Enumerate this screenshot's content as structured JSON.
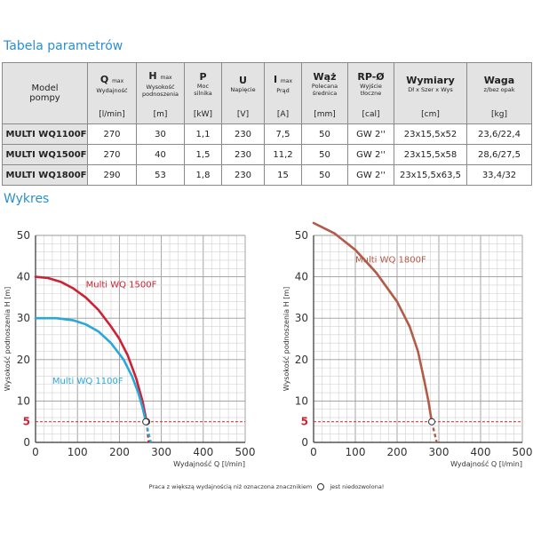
{
  "titles": {
    "table": "Tabela parametrów",
    "chart": "Wykres"
  },
  "table": {
    "model_header": [
      "Model",
      "pompy"
    ],
    "columns": [
      {
        "main": "Q",
        "sup": "max",
        "sub": [
          "Wydajność"
        ],
        "unit": "[l/min]"
      },
      {
        "main": "H",
        "sup": "max",
        "sub": [
          "Wysokość",
          "podnoszenia"
        ],
        "unit": "[m]"
      },
      {
        "main": "P",
        "sup": "",
        "sub": [
          "Moc",
          "silnika"
        ],
        "unit": "[kW]"
      },
      {
        "main": "U",
        "sup": "",
        "sub": [
          "Napięcie"
        ],
        "unit": "[V]"
      },
      {
        "main": "I",
        "sup": "max",
        "sub": [
          "Prąd"
        ],
        "unit": "[A]"
      },
      {
        "main": "Wąż",
        "sup": "",
        "sub": [
          "Polecana",
          "średnica"
        ],
        "unit": "[mm]"
      },
      {
        "main": "RP-Ø",
        "sup": "",
        "sub": [
          "Wyjście",
          "tłoczne"
        ],
        "unit": "[cal]"
      },
      {
        "main": "Wymiary",
        "sup": "",
        "sub": [
          "Dł x Szer x Wys"
        ],
        "unit": "[cm]"
      },
      {
        "main": "Waga",
        "sup": "",
        "sub": [
          "z/bez opak"
        ],
        "unit": "[kg]"
      }
    ],
    "rows": [
      {
        "model": "MULTI WQ1100F",
        "cells": [
          "270",
          "30",
          "1,1",
          "230",
          "7,5",
          "50",
          "GW 2''",
          "23x15,5x52",
          "23,6/22,4"
        ]
      },
      {
        "model": "MULTI WQ1500F",
        "cells": [
          "270",
          "40",
          "1,5",
          "230",
          "11,2",
          "50",
          "GW 2''",
          "23x15,5x58",
          "28,6/27,5"
        ]
      },
      {
        "model": "MULTI WQ1800F",
        "cells": [
          "290",
          "53",
          "1,8",
          "230",
          "15",
          "50",
          "GW 2''",
          "23x15,5x63,5",
          "33,4/32"
        ]
      }
    ]
  },
  "colors": {
    "title": "#2a8fcf",
    "wq1100": "#2aa7d8",
    "wq1500": "#cc2233",
    "wq1800": "#b35a48",
    "limit": "#cc2233"
  },
  "chart_data": [
    {
      "type": "line",
      "xlabel": "Wydajność Q [l/min]",
      "ylabel": "Wysokość podnoszenia H [m]",
      "xlim": [
        0,
        500
      ],
      "ylim": [
        0,
        50
      ],
      "x_ticks": [
        0,
        100,
        200,
        300,
        400,
        500
      ],
      "y_ticks": [
        0,
        5,
        10,
        20,
        30,
        40,
        50
      ],
      "grid": true,
      "reference_line": {
        "y": 5,
        "label": "5"
      },
      "series": [
        {
          "name": "Multi WQ 1500F",
          "color_key": "wq1500",
          "label_at": [
            120,
            37.5
          ],
          "points": [
            [
              0,
              40
            ],
            [
              30,
              39.7
            ],
            [
              60,
              38.8
            ],
            [
              90,
              37.2
            ],
            [
              120,
              35
            ],
            [
              150,
              32
            ],
            [
              180,
              28
            ],
            [
              200,
              25
            ],
            [
              220,
              21
            ],
            [
              240,
              15.5
            ],
            [
              255,
              10
            ],
            [
              265,
              5
            ]
          ],
          "extension": [
            [
              265,
              5
            ],
            [
              270,
              0
            ]
          ],
          "limit_point": [
            265,
            5
          ]
        },
        {
          "name": "Multi WQ 1100F",
          "color_key": "wq1100",
          "label_at": [
            40,
            14.2
          ],
          "points": [
            [
              0,
              30
            ],
            [
              50,
              30
            ],
            [
              90,
              29.5
            ],
            [
              120,
              28.5
            ],
            [
              150,
              26.8
            ],
            [
              180,
              24
            ],
            [
              210,
              20
            ],
            [
              230,
              16
            ],
            [
              245,
              12
            ],
            [
              255,
              8.5
            ],
            [
              263,
              5
            ]
          ],
          "extension": [
            [
              263,
              5
            ],
            [
              275,
              0
            ]
          ],
          "limit_point": [
            263,
            5
          ]
        }
      ]
    },
    {
      "type": "line",
      "xlabel": "Wydajność Q [l/min]",
      "ylabel": "Wysokość podnoszenia H [m]",
      "xlim": [
        0,
        500
      ],
      "ylim": [
        0,
        55
      ],
      "x_ticks": [
        0,
        100,
        200,
        300,
        400,
        500
      ],
      "y_ticks": [
        0,
        5,
        10,
        20,
        30,
        40,
        50
      ],
      "grid": true,
      "reference_line": {
        "y": 5,
        "label": "5"
      },
      "series": [
        {
          "name": "Multi WQ 1800F",
          "color_key": "wq1800",
          "label_at": [
            100,
            43.5
          ],
          "points": [
            [
              0,
              53
            ],
            [
              50,
              50.5
            ],
            [
              100,
              46.5
            ],
            [
              150,
              41
            ],
            [
              200,
              34
            ],
            [
              230,
              28
            ],
            [
              250,
              22
            ],
            [
              265,
              15
            ],
            [
              275,
              10
            ],
            [
              283,
              5
            ]
          ],
          "extension": [
            [
              283,
              5
            ],
            [
              295,
              0
            ]
          ],
          "limit_point": [
            283,
            5
          ]
        }
      ]
    }
  ],
  "footnote": {
    "before": "Praca z większą wydajnością niż oznaczona znacznikiem",
    "after": "jest niedozwolona!"
  }
}
